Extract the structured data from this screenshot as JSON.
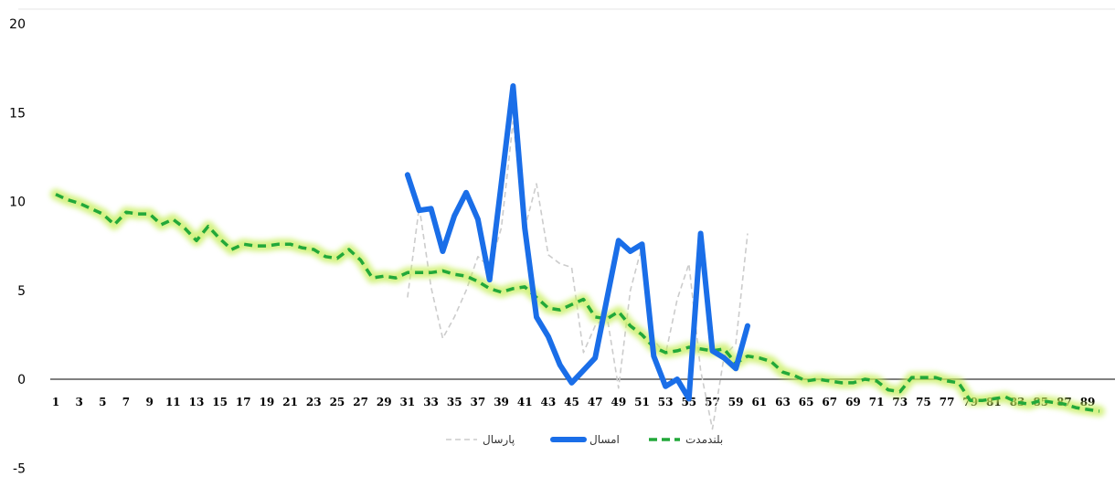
{
  "chart_data": {
    "type": "line",
    "ylim": [
      -5,
      20
    ],
    "yticks": [
      -5,
      0,
      5,
      10,
      15,
      20
    ],
    "xlim": [
      1,
      90
    ],
    "xtick_step": 2,
    "grid": false,
    "legend_position": "bottom",
    "series": [
      {
        "name": "بلندمدت",
        "color": "#22a83a",
        "style": "dashed-glow",
        "x": [
          1,
          2,
          3,
          4,
          5,
          6,
          7,
          8,
          9,
          10,
          11,
          12,
          13,
          14,
          15,
          16,
          17,
          18,
          19,
          20,
          21,
          22,
          23,
          24,
          25,
          26,
          27,
          28,
          29,
          30,
          31,
          32,
          33,
          34,
          35,
          36,
          37,
          38,
          39,
          40,
          41,
          42,
          43,
          44,
          45,
          46,
          47,
          48,
          49,
          50,
          51,
          52,
          53,
          54,
          55,
          56,
          57,
          58,
          59,
          60,
          61,
          62,
          63,
          64,
          65,
          66,
          67,
          68,
          69,
          70,
          71,
          72,
          73,
          74,
          75,
          76,
          77,
          78,
          79,
          80,
          81,
          82,
          83,
          84,
          85,
          86,
          87,
          88,
          89,
          90
        ],
        "values": [
          10.4,
          10.1,
          9.9,
          9.6,
          9.3,
          8.7,
          9.4,
          9.3,
          9.3,
          8.7,
          9.0,
          8.5,
          7.8,
          8.6,
          7.9,
          7.3,
          7.6,
          7.5,
          7.5,
          7.6,
          7.6,
          7.4,
          7.3,
          6.9,
          6.8,
          7.3,
          6.7,
          5.7,
          5.8,
          5.7,
          6.0,
          6.0,
          6.0,
          6.1,
          5.9,
          5.8,
          5.5,
          5.1,
          4.9,
          5.1,
          5.2,
          4.6,
          4.0,
          3.9,
          4.2,
          4.5,
          3.5,
          3.4,
          3.8,
          3.0,
          2.5,
          1.8,
          1.5,
          1.6,
          1.8,
          1.7,
          1.6,
          1.7,
          0.9,
          1.3,
          1.2,
          1.0,
          0.4,
          0.2,
          -0.1,
          0.0,
          -0.1,
          -0.2,
          -0.2,
          0.0,
          -0.1,
          -0.6,
          -0.7,
          0.1,
          0.1,
          0.1,
          -0.1,
          -0.2,
          -1.2,
          -1.2,
          -1.1,
          -1.0,
          -1.3,
          -1.4,
          -1.2,
          -1.3,
          -1.4,
          -1.6,
          -1.7,
          -1.8
        ]
      },
      {
        "name": "امسال",
        "color": "#1a6ee8",
        "style": "solid-thick",
        "x": [
          31,
          32,
          33,
          34,
          35,
          36,
          37,
          38,
          39,
          40,
          41,
          42,
          43,
          44,
          45,
          46,
          47,
          48,
          49,
          50,
          51,
          52,
          53,
          54,
          55,
          56,
          57,
          58,
          59,
          60
        ],
        "values": [
          11.5,
          9.5,
          9.6,
          7.2,
          9.2,
          10.5,
          9.0,
          5.6,
          11.0,
          16.5,
          8.5,
          3.5,
          2.4,
          0.8,
          -0.2,
          0.5,
          1.2,
          4.5,
          7.8,
          7.2,
          7.6,
          1.3,
          -0.4,
          0.0,
          -1.1,
          8.2,
          1.6,
          1.2,
          0.6,
          3.0
        ]
      },
      {
        "name": "پارسال",
        "color": "#cccccc",
        "style": "dashed-thin",
        "x": [
          31,
          32,
          33,
          34,
          35,
          36,
          37,
          38,
          39,
          40,
          41,
          42,
          43,
          44,
          45,
          46,
          47,
          48,
          49,
          50,
          51,
          52,
          53,
          54,
          55,
          56,
          57,
          58,
          59,
          60
        ],
        "values": [
          4.6,
          9.7,
          5.2,
          2.3,
          3.5,
          5.0,
          6.9,
          6.3,
          8.5,
          14.5,
          8.5,
          11.0,
          7.0,
          6.5,
          6.3,
          1.5,
          3.0,
          3.6,
          -0.5,
          5.0,
          7.5,
          2.2,
          1.4,
          4.5,
          6.5,
          0.5,
          -2.8,
          1.3,
          2.0,
          8.2
        ]
      }
    ]
  }
}
